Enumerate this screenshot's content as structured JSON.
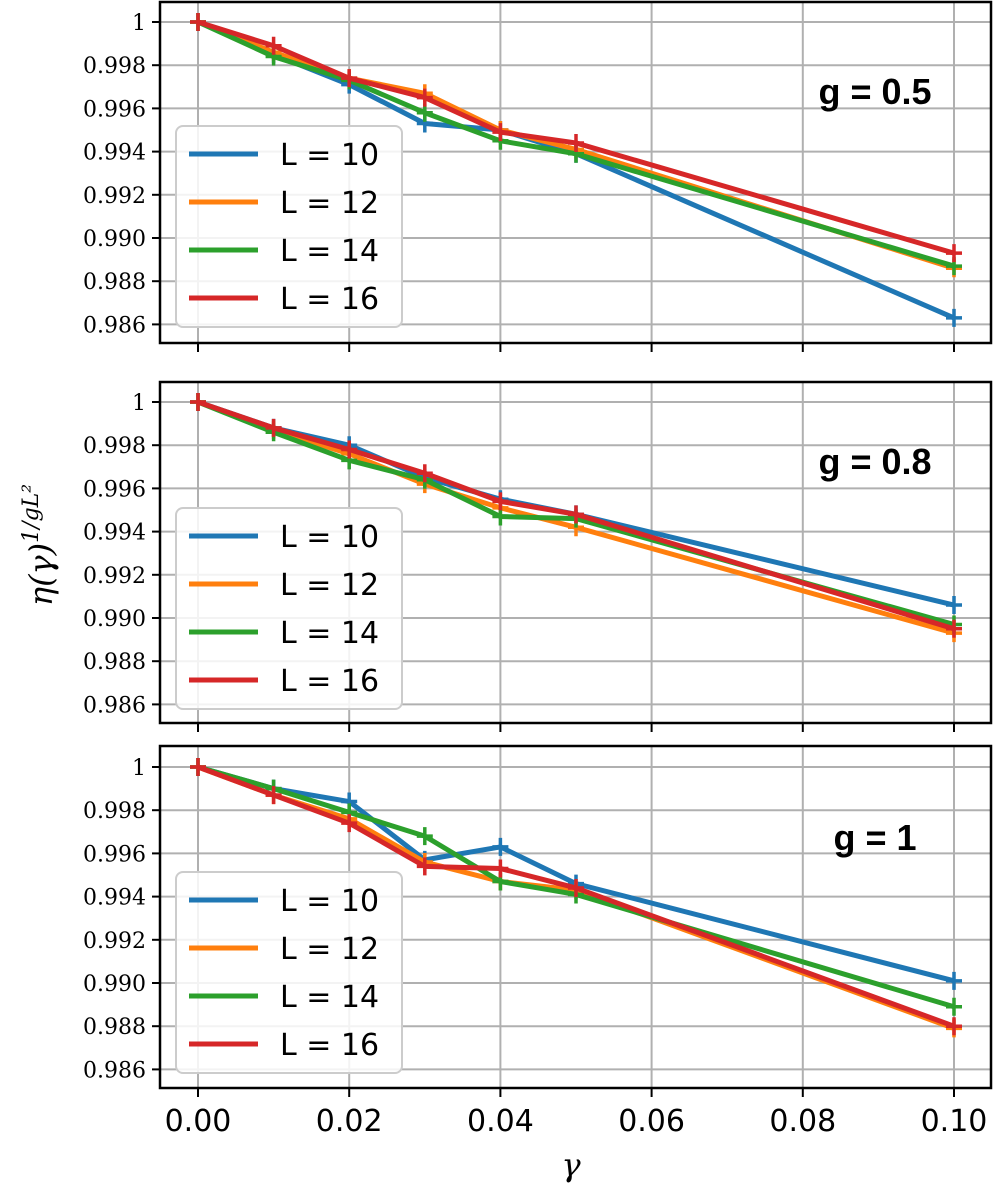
{
  "chart_data": {
    "type": "line",
    "xlabel": "γ",
    "ylabel": {
      "base": "η(γ)",
      "sup": "1/gL²"
    },
    "x": [
      0.0,
      0.01,
      0.02,
      0.03,
      0.04,
      0.05,
      0.1
    ],
    "xticks": [
      0.0,
      0.02,
      0.04,
      0.06,
      0.08,
      0.1
    ],
    "xtick_labels": [
      "0.00",
      "0.02",
      "0.04",
      "0.06",
      "0.08",
      "0.10"
    ],
    "xlim": [
      -0.005,
      0.105
    ],
    "ylim": [
      0.985,
      1.001
    ],
    "yticks": [
      1.0,
      0.998,
      0.996,
      0.994,
      0.992,
      0.99,
      0.988,
      0.986
    ],
    "ytick_labels": [
      "1",
      "0.998",
      "0.996",
      "0.994",
      "0.992",
      "0.990",
      "0.988",
      "0.986"
    ],
    "grid": true,
    "legend_position": "left",
    "series_colors": [
      "#1f77b4",
      "#ff7f0e",
      "#2ca02c",
      "#d62728"
    ],
    "panels": [
      {
        "label": "g = 0.5",
        "series": [
          {
            "name": "L = 10",
            "values": [
              1.0,
              0.9985,
              0.9971,
              0.9953,
              0.995,
              0.9939,
              0.9863
            ]
          },
          {
            "name": "L = 12",
            "values": [
              1.0,
              0.9986,
              0.9974,
              0.9967,
              0.995,
              0.9941,
              0.9886
            ]
          },
          {
            "name": "L = 14",
            "values": [
              1.0,
              0.9984,
              0.9973,
              0.9958,
              0.9945,
              0.9939,
              0.9887
            ]
          },
          {
            "name": "L = 16",
            "values": [
              1.0,
              0.9989,
              0.9974,
              0.9965,
              0.9949,
              0.9944,
              0.9893
            ]
          }
        ]
      },
      {
        "label": "g = 0.8",
        "series": [
          {
            "name": "L = 10",
            "values": [
              1.0,
              0.9988,
              0.998,
              0.9965,
              0.9955,
              0.9948,
              0.9906
            ]
          },
          {
            "name": "L = 12",
            "values": [
              1.0,
              0.9987,
              0.9976,
              0.9962,
              0.9951,
              0.9942,
              0.9893
            ]
          },
          {
            "name": "L = 14",
            "values": [
              1.0,
              0.9986,
              0.9973,
              0.9964,
              0.9947,
              0.9946,
              0.9897
            ]
          },
          {
            "name": "L = 16",
            "values": [
              1.0,
              0.9988,
              0.9978,
              0.9967,
              0.9954,
              0.9948,
              0.9895
            ]
          }
        ]
      },
      {
        "label": "g = 1",
        "series": [
          {
            "name": "L = 10",
            "values": [
              1.0,
              0.999,
              0.9984,
              0.9957,
              0.9963,
              0.9946,
              0.9901
            ]
          },
          {
            "name": "L = 12",
            "values": [
              1.0,
              0.9987,
              0.9976,
              0.9956,
              0.9947,
              0.9943,
              0.9879
            ]
          },
          {
            "name": "L = 14",
            "values": [
              1.0,
              0.999,
              0.9979,
              0.9968,
              0.9947,
              0.9941,
              0.9889
            ]
          },
          {
            "name": "L = 16",
            "values": [
              1.0,
              0.9987,
              0.9974,
              0.9954,
              0.9953,
              0.9944,
              0.988
            ]
          }
        ]
      }
    ]
  }
}
